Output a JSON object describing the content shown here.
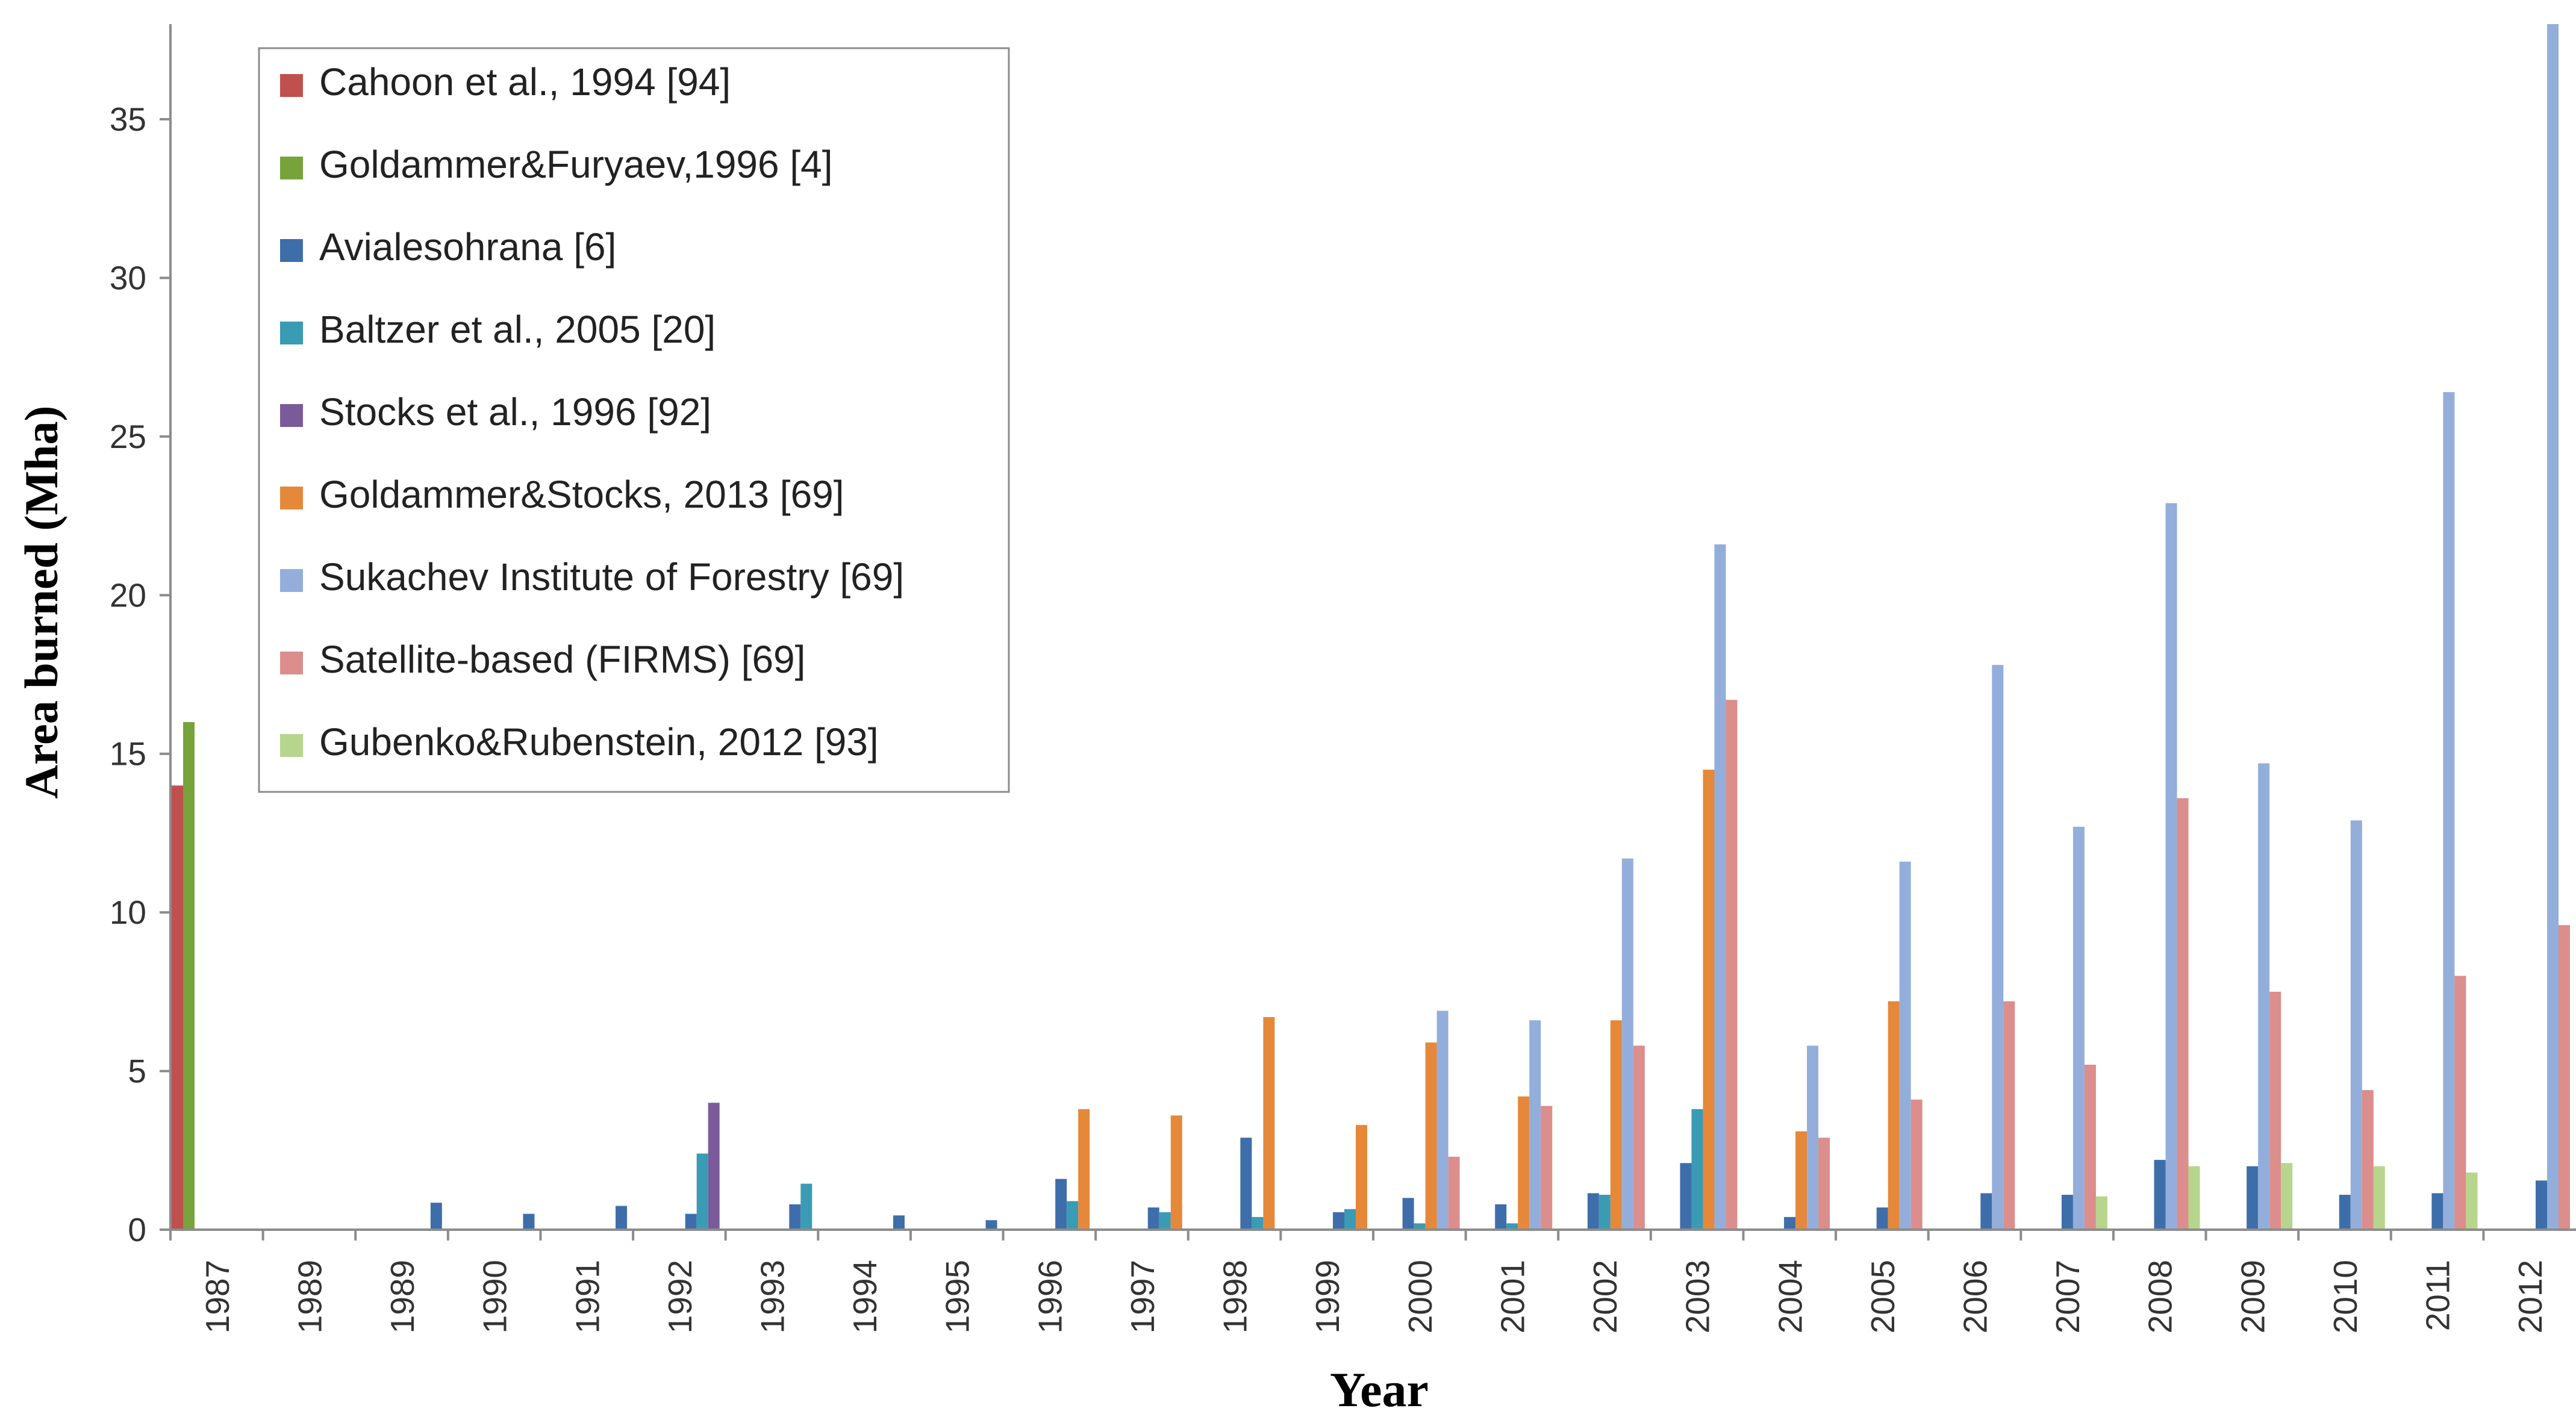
{
  "chart_data": {
    "type": "bar",
    "title": "",
    "xlabel": "Year",
    "ylabel": "Area burned (Mha)",
    "ylim": [
      0,
      38
    ],
    "yticks": [
      0,
      5,
      10,
      15,
      20,
      25,
      30,
      35
    ],
    "grid": false,
    "legend_position": "top-left",
    "categories": [
      "1987",
      "1989",
      "1989",
      "1990",
      "1991",
      "1992",
      "1993",
      "1994",
      "1995",
      "1996",
      "1997",
      "1998",
      "1999",
      "2000",
      "2001",
      "2002",
      "2003",
      "2004",
      "2005",
      "2006",
      "2007",
      "2008",
      "2009",
      "2010",
      "2011",
      "2012"
    ],
    "series": [
      {
        "name": "Cahoon et al., 1994 [94]",
        "color": "#C0504D",
        "values": [
          14,
          null,
          null,
          null,
          null,
          null,
          null,
          null,
          null,
          null,
          null,
          null,
          null,
          null,
          null,
          null,
          null,
          null,
          null,
          null,
          null,
          null,
          null,
          null,
          null,
          null
        ]
      },
      {
        "name": "Goldammer&Furyaev,1996 [4]",
        "color": "#77A33B",
        "values": [
          16,
          null,
          null,
          null,
          null,
          null,
          null,
          null,
          null,
          null,
          null,
          null,
          null,
          null,
          null,
          null,
          null,
          null,
          null,
          null,
          null,
          null,
          null,
          null,
          null,
          null
        ]
      },
      {
        "name": "Avialesohrana [6]",
        "color": "#3E6EAA",
        "values": [
          null,
          null,
          0.85,
          0.5,
          0.75,
          0.5,
          0.8,
          0.45,
          0.3,
          1.6,
          0.7,
          2.9,
          0.55,
          1.0,
          0.8,
          1.15,
          2.1,
          0.4,
          0.7,
          1.15,
          1.1,
          2.2,
          2.0,
          1.1,
          1.15,
          1.55
        ]
      },
      {
        "name": "Baltzer et al., 2005 [20]",
        "color": "#3A9BB5",
        "values": [
          null,
          null,
          null,
          null,
          null,
          2.4,
          1.45,
          null,
          null,
          0.9,
          0.55,
          0.4,
          0.65,
          0.2,
          0.2,
          1.1,
          3.8,
          null,
          null,
          null,
          null,
          null,
          null,
          null,
          null,
          null
        ]
      },
      {
        "name": "Stocks et al., 1996 [92]",
        "color": "#7B5A9A",
        "values": [
          null,
          null,
          null,
          null,
          null,
          4.0,
          null,
          null,
          null,
          null,
          null,
          null,
          null,
          null,
          null,
          null,
          null,
          null,
          null,
          null,
          null,
          null,
          null,
          null,
          null,
          null
        ]
      },
      {
        "name": "Goldammer&Stocks, 2013 [69]",
        "color": "#E5883A",
        "values": [
          null,
          null,
          null,
          null,
          null,
          null,
          null,
          null,
          null,
          3.8,
          3.6,
          6.7,
          3.3,
          5.9,
          4.2,
          6.6,
          14.5,
          3.1,
          7.2,
          null,
          null,
          null,
          null,
          null,
          null,
          null
        ]
      },
      {
        "name": "Sukachev Institute of Forestry [69]",
        "color": "#93AEDA",
        "values": [
          null,
          null,
          null,
          null,
          null,
          null,
          null,
          null,
          null,
          null,
          null,
          null,
          null,
          6.9,
          6.6,
          11.7,
          21.6,
          5.8,
          11.6,
          17.8,
          12.7,
          22.9,
          14.7,
          12.9,
          26.4,
          38
        ]
      },
      {
        "name": "Satellite-based (FIRMS) [69]",
        "color": "#DB8E8C",
        "values": [
          null,
          null,
          null,
          null,
          null,
          null,
          null,
          null,
          null,
          null,
          null,
          null,
          null,
          2.3,
          3.9,
          5.8,
          16.7,
          2.9,
          4.1,
          7.2,
          5.2,
          13.6,
          7.5,
          4.4,
          8.0,
          9.6
        ]
      },
      {
        "name": "Gubenko&Rubenstein, 2012 [93]",
        "color": "#B7D58C",
        "values": [
          null,
          null,
          null,
          null,
          null,
          null,
          null,
          null,
          null,
          null,
          null,
          null,
          null,
          null,
          null,
          null,
          null,
          null,
          null,
          null,
          1.05,
          2.0,
          2.1,
          2.0,
          1.8,
          null
        ]
      }
    ]
  }
}
